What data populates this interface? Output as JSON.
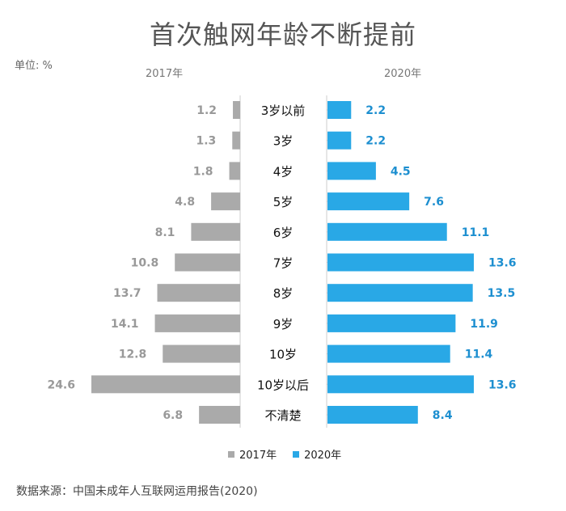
{
  "title": "首次触网年龄不断提前",
  "unit_label": "单位: %",
  "source": "数据来源：中国未成年人互联网运用报告(2020)",
  "colors": {
    "s2017": "#aaaaaa",
    "s2020": "#29a8e6",
    "label2017": "#999999",
    "label2020": "#1d8fd0"
  },
  "chart_data": {
    "type": "bar",
    "orientation": "horizontal-butterfly",
    "title": "首次触网年龄不断提前",
    "categories": [
      "3岁以前",
      "3岁",
      "4岁",
      "5岁",
      "6岁",
      "7岁",
      "8岁",
      "9岁",
      "10岁",
      "10岁以后",
      "不清楚"
    ],
    "series": [
      {
        "name": "2017年",
        "values": [
          1.2,
          1.3,
          1.8,
          4.8,
          8.1,
          10.8,
          13.7,
          14.1,
          12.8,
          24.6,
          6.8
        ]
      },
      {
        "name": "2020年",
        "values": [
          2.2,
          2.2,
          4.5,
          7.6,
          11.1,
          13.6,
          13.5,
          11.9,
          11.4,
          13.6,
          8.4
        ]
      }
    ],
    "legend": [
      "2017年",
      "2020年"
    ],
    "legend_position": "bottom"
  }
}
